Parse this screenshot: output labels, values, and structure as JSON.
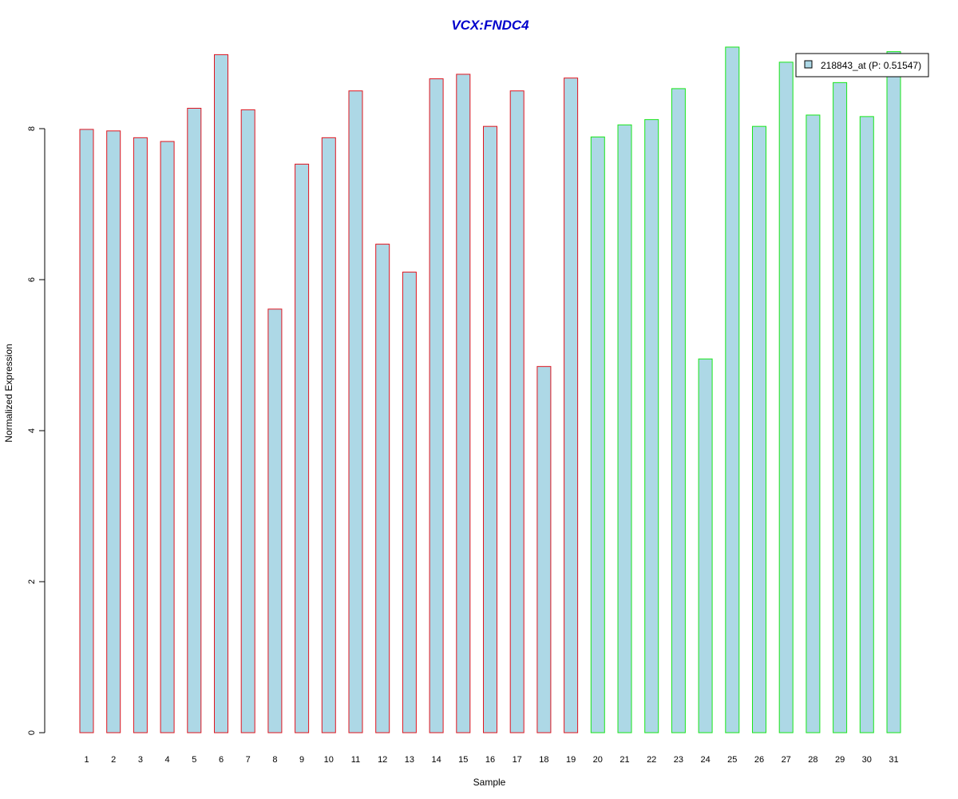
{
  "colors": {
    "title": "#0000cc",
    "bar_fill": "#add8e6",
    "group1_border": "#e0141e",
    "group2_border": "#19e619",
    "axis": "#000000"
  },
  "chart_data": {
    "type": "bar",
    "title": "VCX:FNDC4",
    "xlabel": "Sample",
    "ylabel": "Normalized Expression",
    "ylim": [
      0,
      9.1
    ],
    "y_ticks": [
      0,
      2,
      4,
      6,
      8
    ],
    "grid": false,
    "legend_position": "top-right",
    "legend": [
      {
        "label": "218843_at (P: 0.51547)",
        "color": "#add8e6"
      }
    ],
    "categories": [
      "1",
      "2",
      "3",
      "4",
      "5",
      "6",
      "7",
      "8",
      "9",
      "10",
      "11",
      "12",
      "13",
      "14",
      "15",
      "16",
      "17",
      "18",
      "19",
      "20",
      "21",
      "22",
      "23",
      "24",
      "25",
      "26",
      "27",
      "28",
      "29",
      "30",
      "31"
    ],
    "values": [
      7.99,
      7.97,
      7.88,
      7.83,
      8.27,
      8.98,
      8.25,
      5.61,
      7.53,
      7.88,
      8.5,
      6.47,
      6.1,
      8.66,
      8.72,
      8.03,
      8.5,
      4.85,
      8.67,
      7.89,
      8.05,
      8.12,
      8.53,
      4.95,
      9.08,
      8.03,
      8.88,
      8.18,
      8.61,
      8.16,
      9.02
    ],
    "groups": [
      1,
      1,
      1,
      1,
      1,
      1,
      1,
      1,
      1,
      1,
      1,
      1,
      1,
      1,
      1,
      1,
      1,
      1,
      1,
      2,
      2,
      2,
      2,
      2,
      2,
      2,
      2,
      2,
      2,
      2,
      2
    ]
  }
}
